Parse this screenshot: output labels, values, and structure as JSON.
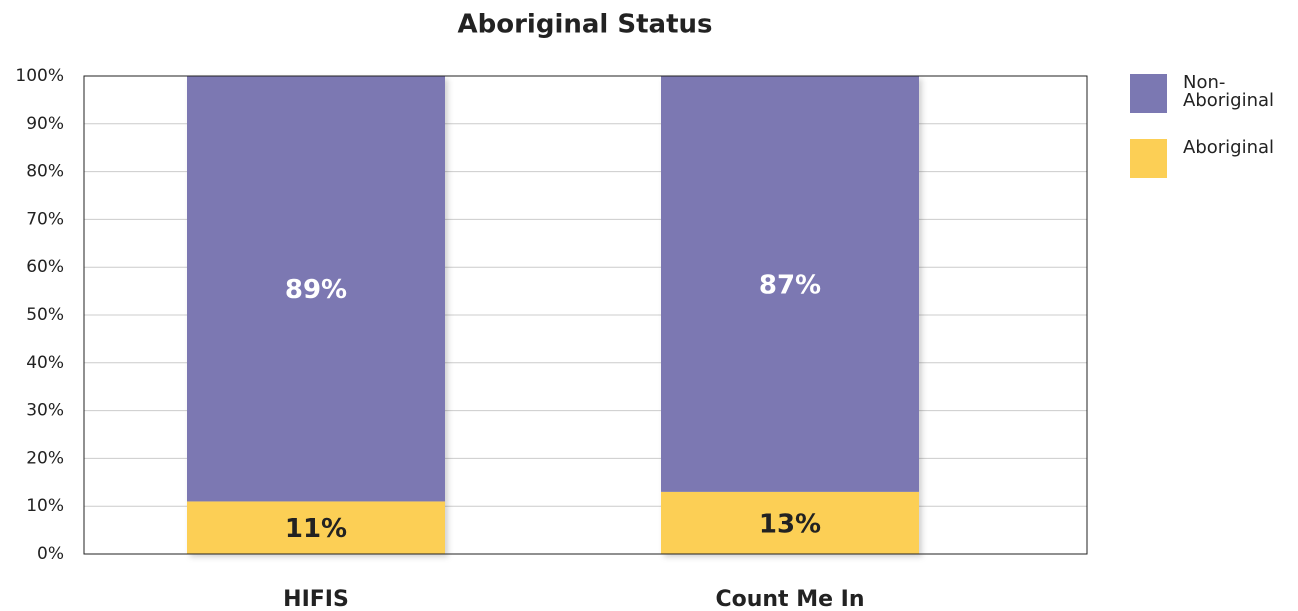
{
  "chart_data": {
    "type": "stacked_bar",
    "title": "Aboriginal Status",
    "categories": [
      "HIFIS",
      "Count Me In"
    ],
    "series": [
      {
        "name": "Aboriginal",
        "color": "#fccf55",
        "values": [
          11,
          13
        ],
        "value_labels": [
          "11%",
          "13%"
        ]
      },
      {
        "name": "Non-Aboriginal",
        "color": "#7b78b2",
        "values": [
          89,
          87
        ],
        "value_labels": [
          "89%",
          "87%"
        ]
      }
    ],
    "ylim": [
      0,
      100
    ],
    "yticks": [
      {
        "value": 0,
        "label": "0%"
      },
      {
        "value": 10,
        "label": "10%"
      },
      {
        "value": 20,
        "label": "20%"
      },
      {
        "value": 30,
        "label": "30%"
      },
      {
        "value": 40,
        "label": "40%"
      },
      {
        "value": 50,
        "label": "50%"
      },
      {
        "value": 60,
        "label": "60%"
      },
      {
        "value": 70,
        "label": "70%"
      },
      {
        "value": 80,
        "label": "80%"
      },
      {
        "value": 90,
        "label": "90%"
      },
      {
        "value": 100,
        "label": "100%"
      }
    ],
    "grid": true,
    "legend": "right"
  }
}
